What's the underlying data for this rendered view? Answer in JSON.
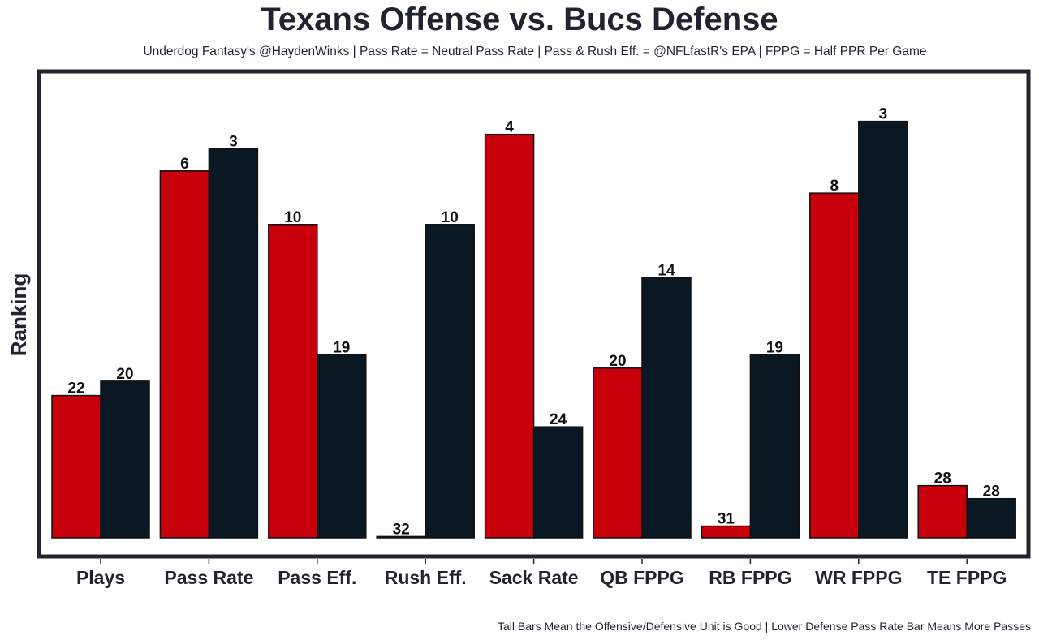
{
  "chart_data": {
    "type": "bar",
    "title": "Texans Offense vs. Bucs Defense",
    "subtitle": "Underdog Fantasy's @HaydenWinks | Pass Rate = Neutral Pass Rate | Pass & Rush Eff. = @NFLfastR's EPA | FPPG = Half PPR Per Game",
    "footer": "Tall Bars Mean the Offensive/Defensive Unit is Good | Lower Defense Pass Rate Bar Means More Passes",
    "xlabel": "",
    "ylabel": "Ranking",
    "ylim": [
      0,
      33
    ],
    "categories": [
      "Plays",
      "Pass Rate",
      "Pass Eff.",
      "Rush Eff.",
      "Sack Rate",
      "QB FPPG",
      "RB FPPG",
      "WR FPPG",
      "TE FPPG"
    ],
    "series": [
      {
        "name": "Texans Offense",
        "color": "#c8000c",
        "labels": [
          "22",
          "6",
          "10",
          "32",
          "4",
          "20",
          "31",
          "8",
          "28"
        ],
        "values": [
          10.9,
          28.1,
          24.0,
          0.1,
          30.9,
          13.0,
          0.9,
          26.4,
          4.0
        ]
      },
      {
        "name": "Bucs Defense",
        "color": "#0a1824",
        "labels": [
          "20",
          "3",
          "19",
          "10",
          "24",
          "14",
          "19",
          "3",
          "28"
        ],
        "values": [
          12.0,
          29.8,
          14.0,
          24.0,
          8.5,
          19.9,
          14.0,
          31.9,
          3.0
        ]
      }
    ],
    "grid": false,
    "legend": "none"
  }
}
